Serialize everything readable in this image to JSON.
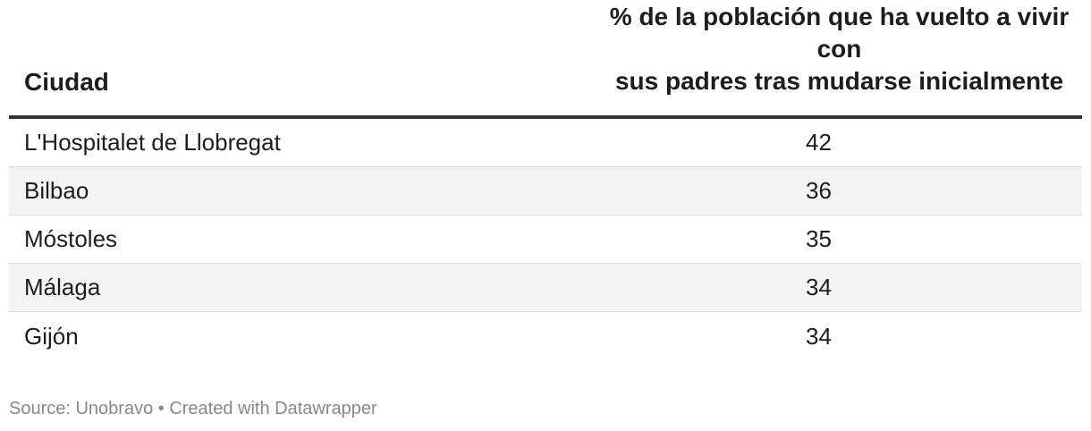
{
  "chart_data": {
    "type": "table",
    "columns": [
      "Ciudad",
      "% de la población que ha vuelto a vivir con sus padres tras mudarse inicialmente"
    ],
    "header_value_lines": [
      "% de la población que ha vuelto a vivir con",
      "sus padres tras mudarse inicialmente"
    ],
    "rows": [
      {
        "city": "L'Hospitalet de Llobregat",
        "value": "42"
      },
      {
        "city": "Bilbao",
        "value": "36"
      },
      {
        "city": "Móstoles",
        "value": "35"
      },
      {
        "city": "Málaga",
        "value": "34"
      },
      {
        "city": "Gijón",
        "value": "34"
      }
    ],
    "source": "Source: Unobravo • Created with Datawrapper",
    "colors": {
      "header_rule": "#333333",
      "row_divider": "#dddddd",
      "shaded_row": "#f4f4f4",
      "text": "#1d1d1d",
      "footer_text": "#888888"
    }
  }
}
